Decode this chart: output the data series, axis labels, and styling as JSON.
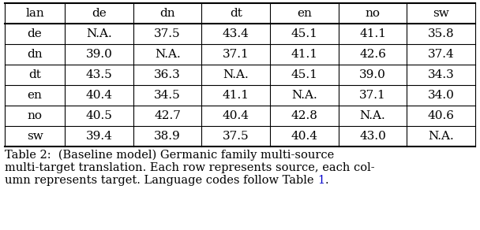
{
  "columns": [
    "lan",
    "de",
    "dn",
    "dt",
    "en",
    "no",
    "sw"
  ],
  "rows": [
    [
      "de",
      "N.A.",
      "37.5",
      "43.4",
      "45.1",
      "41.1",
      "35.8"
    ],
    [
      "dn",
      "39.0",
      "N.A.",
      "37.1",
      "41.1",
      "42.6",
      "37.4"
    ],
    [
      "dt",
      "43.5",
      "36.3",
      "N.A.",
      "45.1",
      "39.0",
      "34.3"
    ],
    [
      "en",
      "40.4",
      "34.5",
      "41.1",
      "N.A.",
      "37.1",
      "34.0"
    ],
    [
      "no",
      "40.5",
      "42.7",
      "40.4",
      "42.8",
      "N.A.",
      "40.6"
    ],
    [
      "sw",
      "39.4",
      "38.9",
      "37.5",
      "40.4",
      "43.0",
      "N.A."
    ]
  ],
  "caption_parts": [
    {
      "text": "Table 2:  (Baseline model) Germanic family multi-source",
      "color": "#000000"
    },
    {
      "text": "\nmulti-target translation. Each row represents source, each col-",
      "color": "#000000"
    },
    {
      "text": "\numn represents target. Language codes follow Table ",
      "color": "#000000"
    },
    {
      "text": "1",
      "color": "#0000cc"
    },
    {
      "text": ".",
      "color": "#000000"
    }
  ],
  "bg_color": "#ffffff",
  "text_color": "#000000",
  "link_color": "#0000cc",
  "table_font_size": 11,
  "caption_font_size": 10.5,
  "col_widths_rel": [
    0.88,
    1.0,
    1.0,
    1.0,
    1.0,
    1.0,
    1.0
  ],
  "figwidth": 6.08,
  "figheight": 2.92,
  "dpi": 100
}
